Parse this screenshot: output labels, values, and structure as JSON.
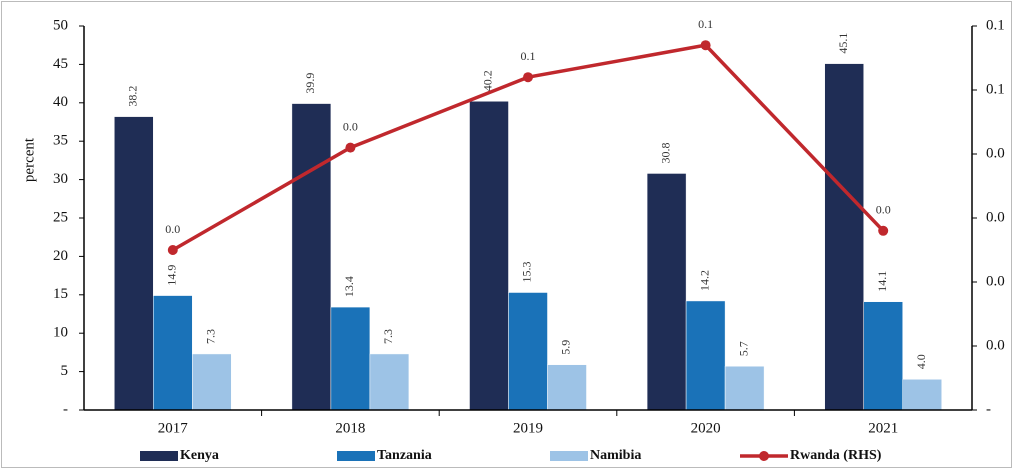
{
  "chart_data": {
    "type": "bar",
    "y_label": "percent",
    "categories": [
      "2017",
      "2018",
      "2019",
      "2020",
      "2021"
    ],
    "series": [
      {
        "name": "Kenya",
        "color": "#1f2d55",
        "values": [
          38.2,
          39.9,
          40.2,
          30.8,
          45.1
        ]
      },
      {
        "name": "Tanzania",
        "color": "#1a72b8",
        "values": [
          14.9,
          13.4,
          15.3,
          14.2,
          14.1
        ]
      },
      {
        "name": "Namibia",
        "color": "#9dc3e6",
        "values": [
          7.3,
          7.3,
          5.9,
          5.7,
          4.0
        ],
        "value_labels": [
          "7.3",
          "7.3",
          "5.9",
          "5.7",
          "4.0"
        ]
      },
      {
        "name": "Rwanda (RHS)",
        "color": "#c0282d",
        "type": "line",
        "axis": "y2",
        "values": [
          0.025,
          0.041,
          0.052,
          0.057,
          0.028
        ],
        "value_labels": [
          "0.0",
          "0.0",
          "0.1",
          "0.1",
          "0.0"
        ]
      }
    ],
    "ylim": [
      0,
      50
    ],
    "yticks": [
      {
        "value": 0,
        "label": "-"
      },
      5,
      10,
      15,
      20,
      25,
      30,
      35,
      40,
      45,
      50
    ],
    "y2lim": [
      0,
      0.06
    ],
    "y2ticks": [
      {
        "value": 0,
        "label": "-"
      },
      {
        "value": 0.01,
        "label": "0.0"
      },
      {
        "value": 0.02,
        "label": "0.0"
      },
      {
        "value": 0.03,
        "label": "0.0"
      },
      {
        "value": 0.04,
        "label": "0.0"
      },
      {
        "value": 0.05,
        "label": "0.1"
      },
      {
        "value": 0.06,
        "label": "0.1"
      }
    ],
    "legend": "bottom"
  }
}
